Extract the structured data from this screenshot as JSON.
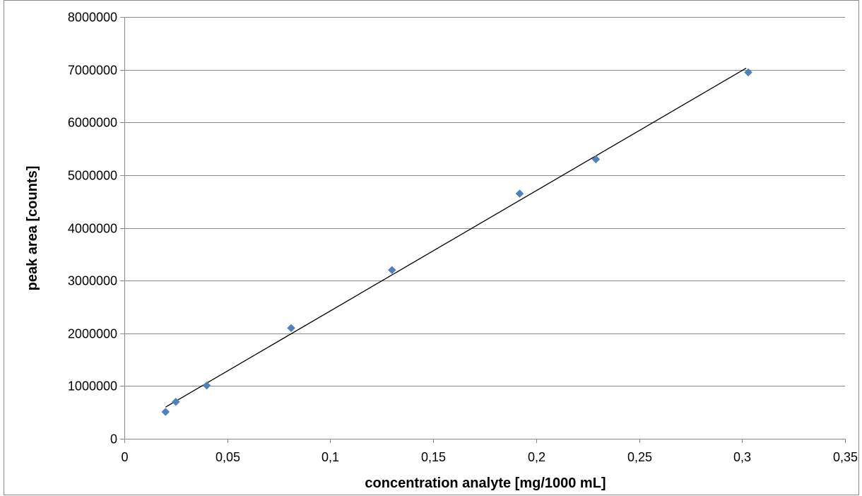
{
  "chart_data": {
    "type": "scatter",
    "title": "",
    "xlabel": "concentration analyte [mg/1000 mL]",
    "ylabel": "peak area [counts]",
    "xlim": [
      0,
      0.35
    ],
    "ylim": [
      0,
      8000000
    ],
    "x_ticks": [
      0,
      0.05,
      0.1,
      0.15,
      0.2,
      0.25,
      0.3,
      0.35
    ],
    "x_tick_labels": [
      "0",
      "0,05",
      "0,1",
      "0,15",
      "0,2",
      "0,25",
      "0,3",
      "0,35"
    ],
    "y_ticks": [
      0,
      1000000,
      2000000,
      3000000,
      4000000,
      5000000,
      6000000,
      7000000,
      8000000
    ],
    "y_tick_labels": [
      "0",
      "1000000",
      "2000000",
      "3000000",
      "4000000",
      "5000000",
      "6000000",
      "7000000",
      "8000000"
    ],
    "grid": {
      "horizontal": true,
      "vertical": false
    },
    "legend": "none",
    "series": [
      {
        "x": [
          0.02,
          0.025,
          0.04,
          0.081,
          0.13,
          0.192,
          0.229,
          0.303
        ],
        "y": [
          510000,
          700000,
          1010000,
          2100000,
          3200000,
          4650000,
          5300000,
          6950000
        ],
        "marker": "diamond",
        "color": "#4f81bd"
      }
    ],
    "trendline": {
      "x": [
        0.02,
        0.302
      ],
      "y": [
        600000,
        7030000
      ],
      "color": "#000000"
    },
    "colors": {
      "grid": "#898989",
      "axis": "#898989",
      "frame": "#898989"
    }
  }
}
